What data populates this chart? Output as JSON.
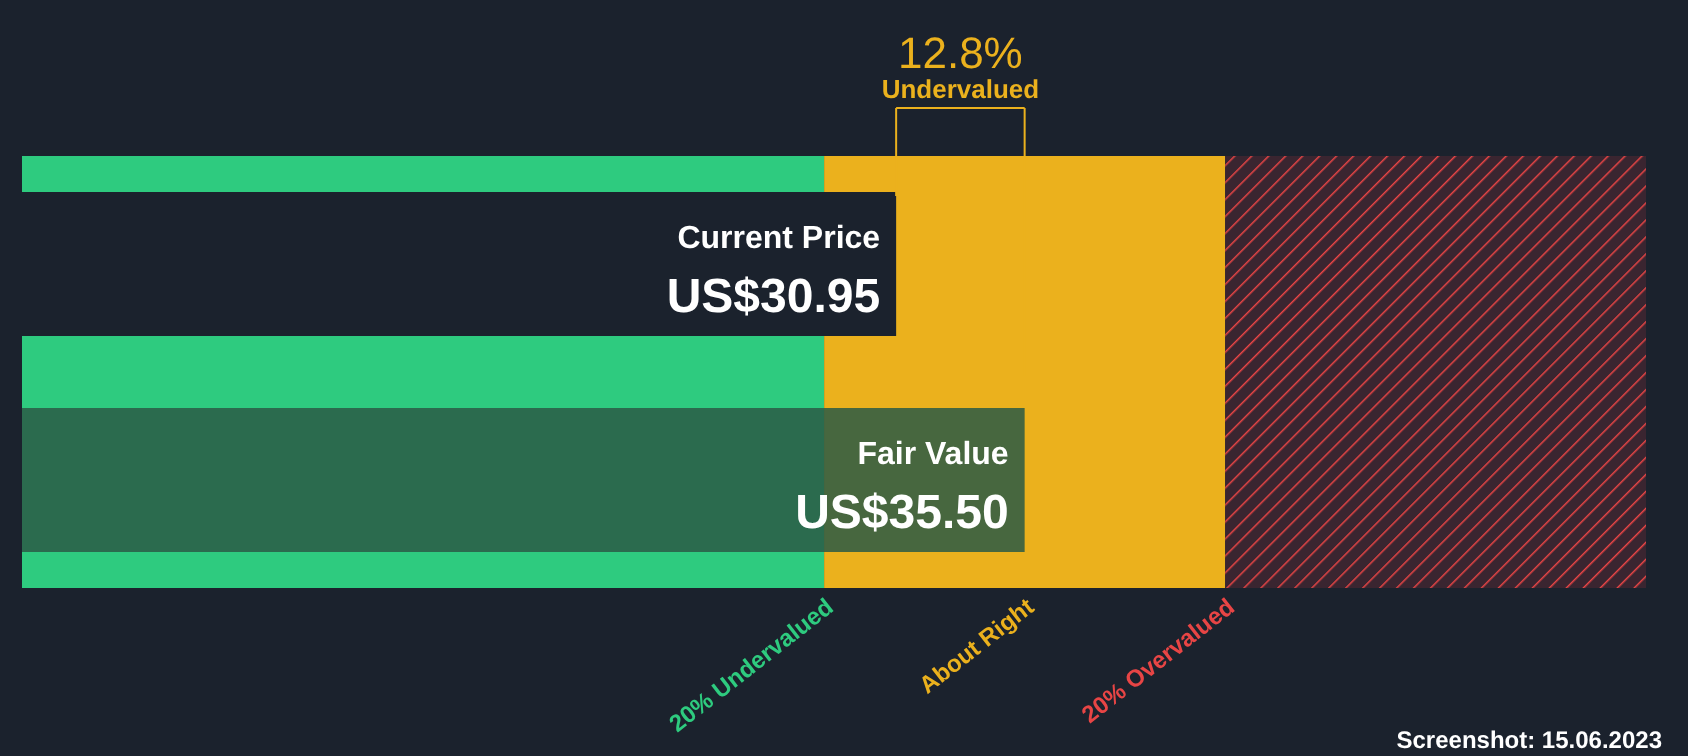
{
  "chart_data": {
    "type": "bar",
    "orientation": "horizontal",
    "categories": [
      "Current Price",
      "Fair Value"
    ],
    "values": [
      30.95,
      35.5
    ],
    "colors": [
      "#1b222d",
      "#2a5a45"
    ],
    "value_labels": [
      "US$30.95",
      "US$35.50"
    ],
    "xlim": [
      0,
      57.5
    ],
    "tick_labels": false,
    "bands": [
      {
        "axis": "x",
        "from": 0,
        "to": 28.4,
        "label": "20% Undervalued",
        "color": "#2ecb7f"
      },
      {
        "axis": "x",
        "from": 28.4,
        "to": 42.6,
        "label": "About Right",
        "color": "#ebb11d"
      },
      {
        "axis": "x",
        "from": 42.6,
        "to": 57.5,
        "label": "20% Overvalued",
        "color": "#e84545"
      }
    ],
    "annotations": [
      "12.8%",
      "Undervalued",
      "Screenshot: 15.06.2023"
    ]
  }
}
